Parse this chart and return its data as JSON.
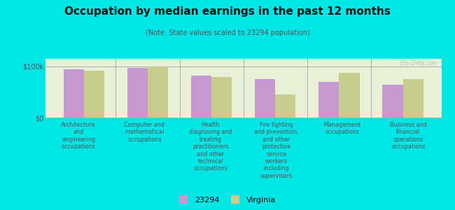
{
  "title": "Occupation by median earnings in the past 12 months",
  "subtitle": "(Note: State values scaled to 23294 population)",
  "background_color": "#00e5e5",
  "chart_bg_color": "#e8f0d8",
  "categories": [
    "Architecture\nand\nengineering\noccupations",
    "Computer and\nmathematical\noccupations",
    "Health\ndiagnosing and\ntreating\npractitioners\nand other\ntechnical\noccupations",
    "Fire fighting\nand prevention,\nand other\nprotective\nservice\nworkers\nincluding\nsupervisors",
    "Management\noccupations",
    "Business and\nfinancial\noperations\noccupations"
  ],
  "values_23294": [
    95000,
    97000,
    82000,
    75000,
    70000,
    65000
  ],
  "values_virginia": [
    92000,
    100000,
    80000,
    45000,
    88000,
    75000
  ],
  "color_23294": "#c799d1",
  "color_virginia": "#c8cc8c",
  "ylim": [
    0,
    115000
  ],
  "yticks": [
    0,
    100000
  ],
  "ytick_labels": [
    "$0",
    "$100k"
  ],
  "legend_labels": [
    "23294",
    "Virginia"
  ],
  "watermark": "City-Data.com"
}
